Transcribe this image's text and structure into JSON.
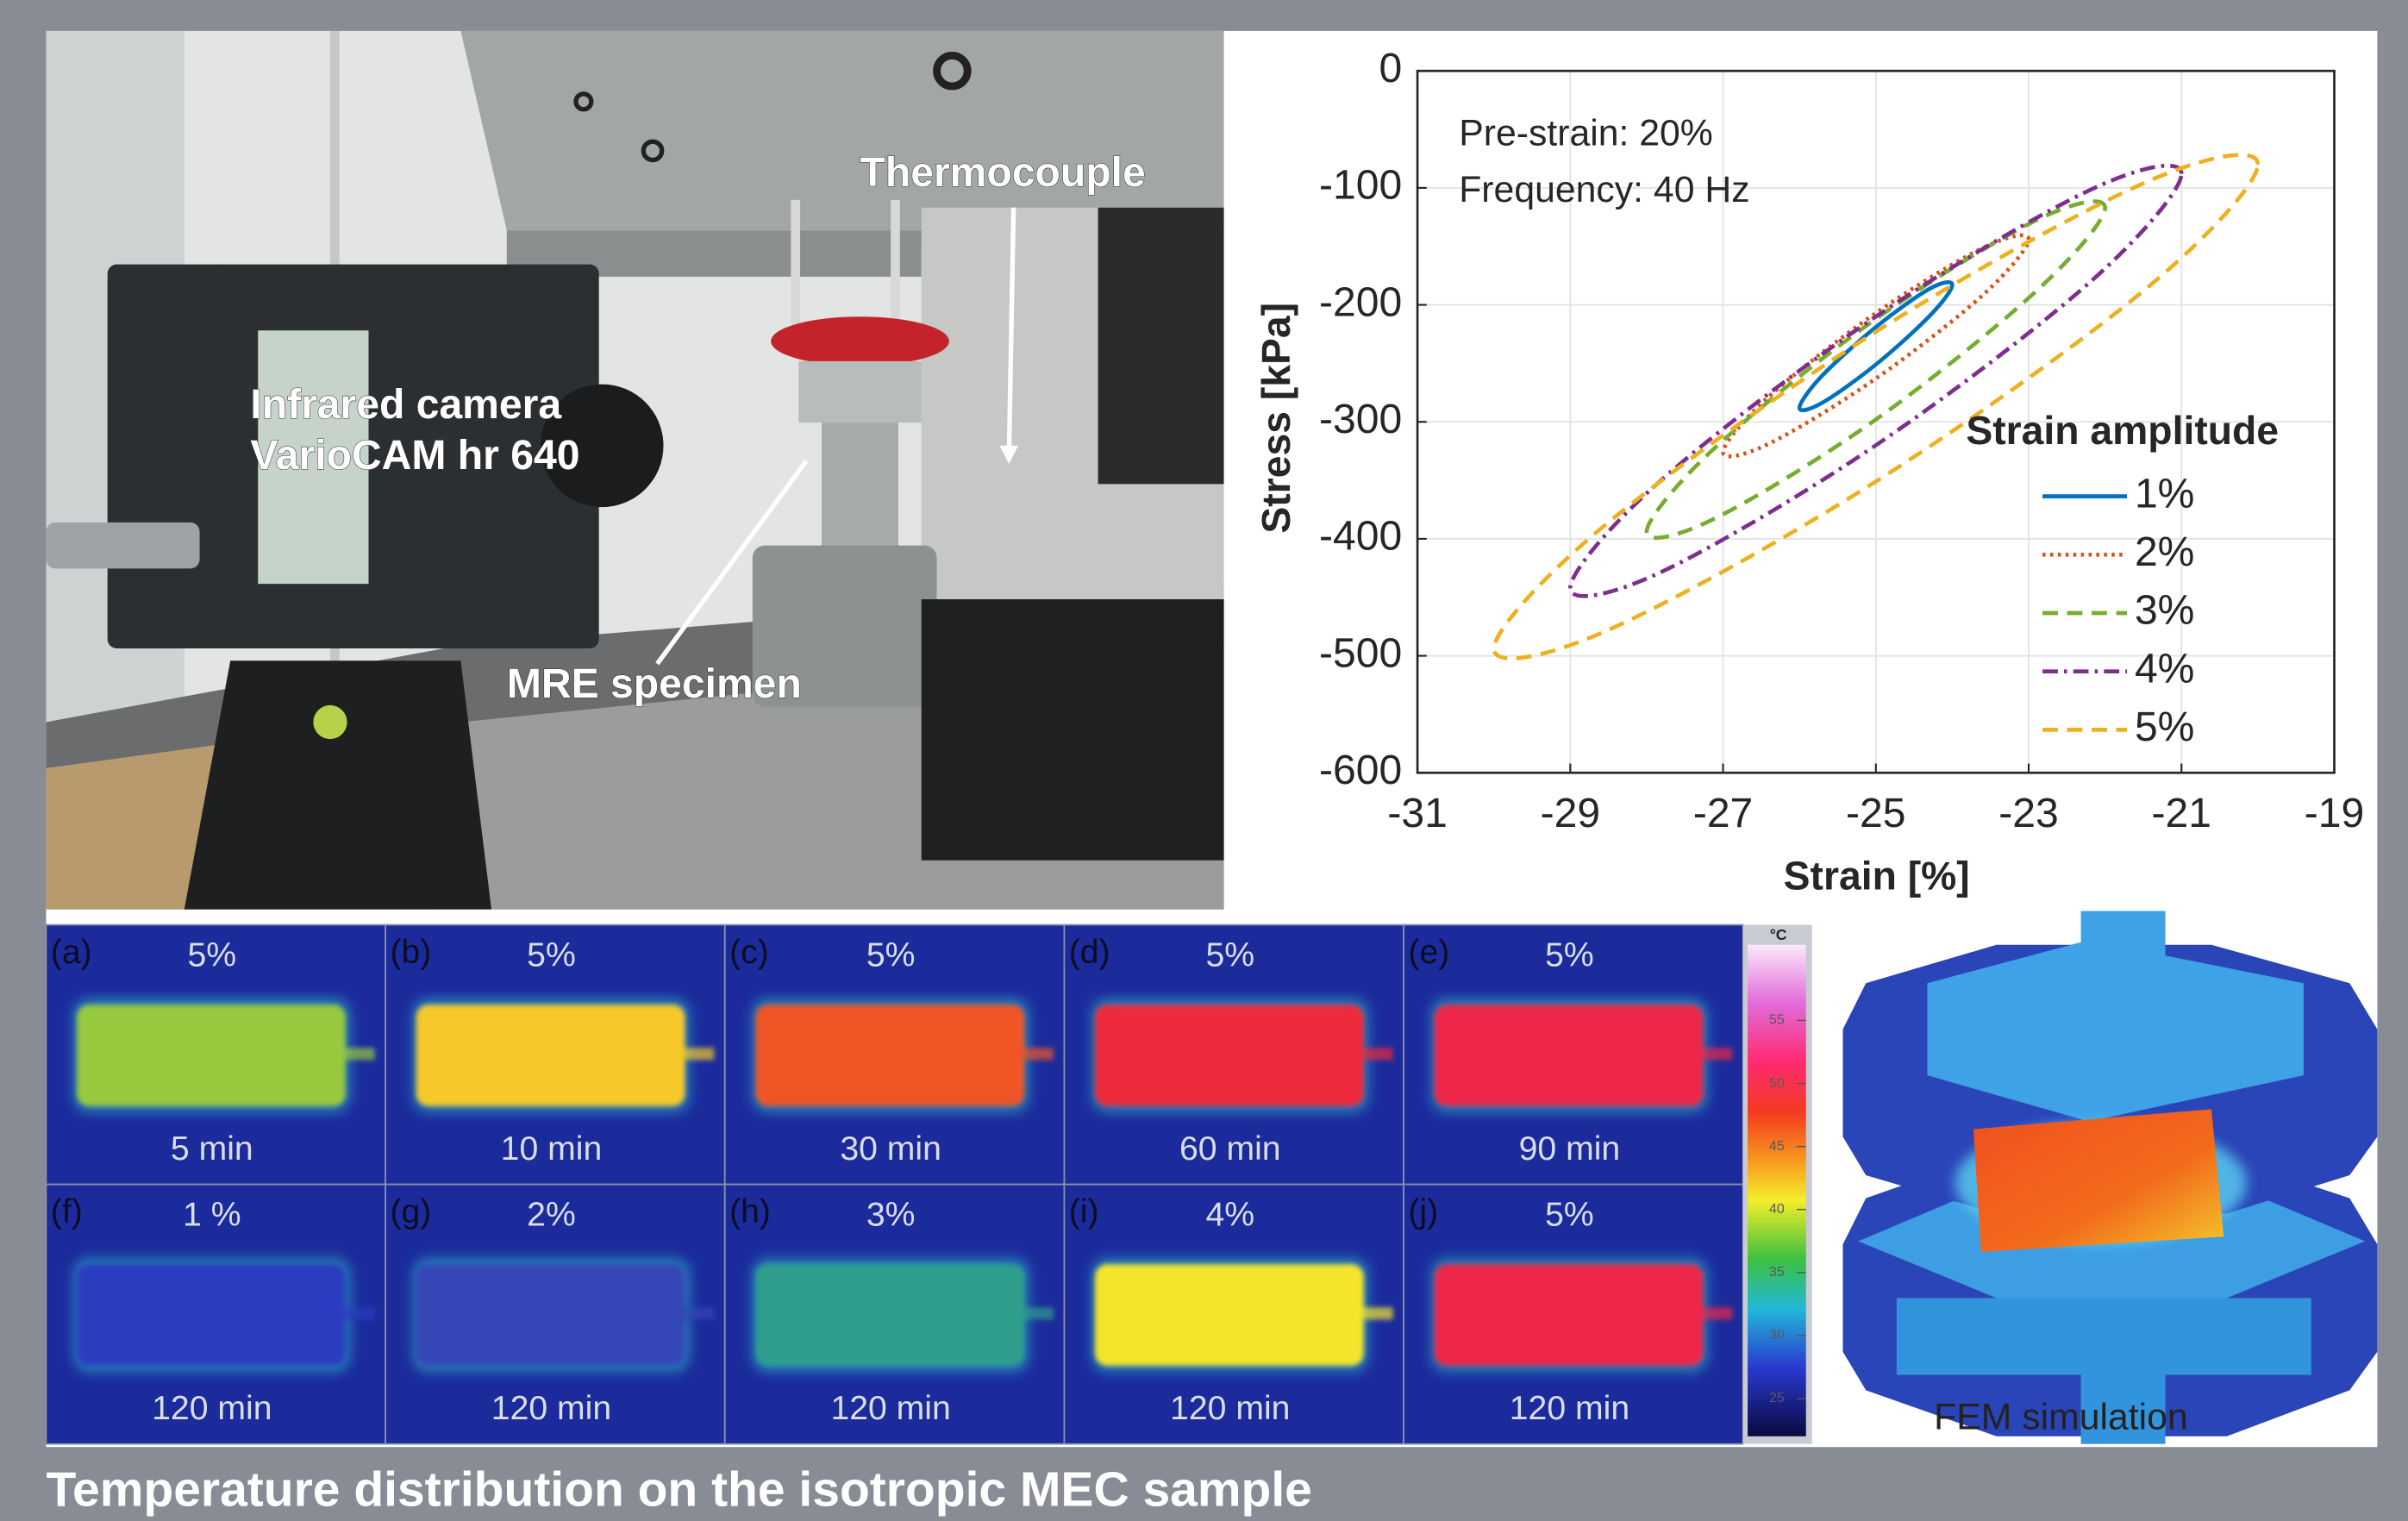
{
  "photo": {
    "labels": [
      "Thermocouple",
      "Infrared camera",
      "VarioCAM hr 640",
      "MRE specimen"
    ]
  },
  "chart_data": {
    "type": "line",
    "annotations": [
      "Pre-strain: 20%",
      "Frequency: 40 Hz"
    ],
    "x_label": "Strain [%]",
    "y_label": "Stress [kPa]",
    "legend_title": "Strain amplitude",
    "legend": "right",
    "grid": true,
    "xlim": [
      -31,
      -19
    ],
    "ylim": [
      -600,
      0
    ],
    "xticks": [
      -31,
      -29,
      -27,
      -25,
      -23,
      -21,
      -19
    ],
    "yticks": [
      0,
      -100,
      -200,
      -300,
      -400,
      -500,
      -600
    ],
    "series": [
      {
        "name": "1%",
        "color": "#0072bd",
        "line_style": "solid",
        "x": [
          -24,
          -24.29,
          -25,
          -25.71,
          -26,
          -25.71,
          -25,
          -24.29
        ],
        "values": [
          -183,
          -186,
          -219,
          -261,
          -288,
          -284,
          -251,
          -209
        ]
      },
      {
        "name": "2%",
        "color": "#d95319",
        "line_style": "dotted",
        "x": [
          -23,
          -23.59,
          -25,
          -26.41,
          -27,
          -26.41,
          -25,
          -23.59
        ],
        "values": [
          -144,
          -151,
          -207,
          -279,
          -326,
          -319,
          -263,
          -191
        ]
      },
      {
        "name": "3%",
        "color": "#77ac30",
        "line_style": "dashed",
        "x": [
          -22,
          -22.88,
          -25,
          -27.12,
          -28,
          -27.12,
          -25,
          -22.88
        ],
        "values": [
          -117,
          -127,
          -212,
          -323,
          -394,
          -383,
          -298,
          -187
        ]
      },
      {
        "name": "4%",
        "color": "#7e2f8e",
        "line_style": "dashdot",
        "x": [
          -21,
          -22.17,
          -25,
          -27.83,
          -29,
          -27.83,
          -25,
          -22.17
        ],
        "values": [
          -88,
          -101,
          -210,
          -351,
          -442,
          -429,
          -320,
          -179
        ]
      },
      {
        "name": "5%",
        "color": "#edb120",
        "line_style": "dashed",
        "x": [
          -20,
          -21.46,
          -25,
          -28.54,
          -30,
          -28.54,
          -25,
          -21.46
        ],
        "values": [
          -80,
          -95,
          -223,
          -388,
          -494,
          -479,
          -351,
          -186
        ]
      }
    ]
  },
  "thermal": {
    "panels": [
      {
        "label": "(a)",
        "amplitude": "5%",
        "time": "5 min",
        "color": "#98c83e"
      },
      {
        "label": "(b)",
        "amplitude": "5%",
        "time": "10 min",
        "color": "#f7c82a"
      },
      {
        "label": "(c)",
        "amplitude": "5%",
        "time": "30 min",
        "color": "#f05428"
      },
      {
        "label": "(d)",
        "amplitude": "5%",
        "time": "60 min",
        "color": "#ee2a3c"
      },
      {
        "label": "(e)",
        "amplitude": "5%",
        "time": "90 min",
        "color": "#ee2848"
      },
      {
        "label": "(f)",
        "amplitude": "1 %",
        "time": "120 min",
        "color": "#2b3cc0"
      },
      {
        "label": "(g)",
        "amplitude": "2%",
        "time": "120 min",
        "color": "#3446b6"
      },
      {
        "label": "(h)",
        "amplitude": "3%",
        "time": "120 min",
        "color": "#2f9f8c"
      },
      {
        "label": "(i)",
        "amplitude": "4%",
        "time": "120 min",
        "color": "#f4e52c"
      },
      {
        "label": "(j)",
        "amplitude": "5%",
        "time": "120 min",
        "color": "#ee2848"
      }
    ],
    "colorbar": {
      "unit": "°C",
      "lim": [
        22,
        61
      ],
      "ticks": [
        25,
        30,
        35,
        40,
        45,
        50,
        55
      ]
    }
  },
  "simulation": {
    "label": "FEM simulation"
  },
  "caption": "Temperature distribution on the isotropic MEC sample"
}
